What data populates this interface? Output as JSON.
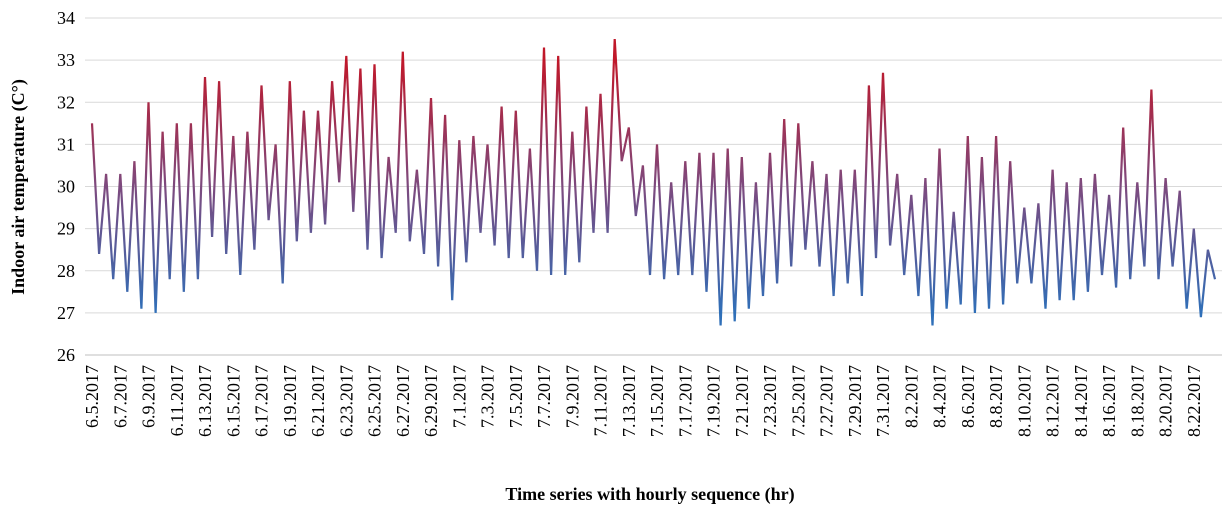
{
  "chart_data": {
    "type": "line",
    "x_label": "Time series with hourly sequence (hr)",
    "y_label": "Indoor air temperature  (C°)",
    "ylim": [
      26,
      34
    ],
    "yticks": [
      26,
      27,
      28,
      29,
      30,
      31,
      32,
      33,
      34
    ],
    "grid": true,
    "gradient_colors": [
      "#c0182a",
      "#7d4a7e",
      "#2f6fb8"
    ],
    "categories": [
      "6.5.2017",
      null,
      null,
      null,
      "6.7.2017",
      null,
      null,
      null,
      "6.9.2017",
      null,
      null,
      null,
      "6.11.2017",
      null,
      null,
      null,
      "6.13.2017",
      null,
      null,
      null,
      "6.15.2017",
      null,
      null,
      null,
      "6.17.2017",
      null,
      null,
      null,
      "6.19.2017",
      null,
      null,
      null,
      "6.21.2017",
      null,
      null,
      null,
      "6.23.2017",
      null,
      null,
      null,
      "6.25.2017",
      null,
      null,
      null,
      "6.27.2017",
      null,
      null,
      null,
      "6.29.2017",
      null,
      null,
      null,
      "7.1.2017",
      null,
      null,
      null,
      "7.3.2017",
      null,
      null,
      null,
      "7.5.2017",
      null,
      null,
      null,
      "7.7.2017",
      null,
      null,
      null,
      "7.9.2017",
      null,
      null,
      null,
      "7.11.2017",
      null,
      null,
      null,
      "7.13.2017",
      null,
      null,
      null,
      "7.15.2017",
      null,
      null,
      null,
      "7.17.2017",
      null,
      null,
      null,
      "7.19.2017",
      null,
      null,
      null,
      "7.21.2017",
      null,
      null,
      null,
      "7.23.2017",
      null,
      null,
      null,
      "7.25.2017",
      null,
      null,
      null,
      "7.27.2017",
      null,
      null,
      null,
      "7.29.2017",
      null,
      null,
      null,
      "7.31.2017",
      null,
      null,
      null,
      "8.2.2017",
      null,
      null,
      null,
      "8.4.2017",
      null,
      null,
      null,
      "8.6.2017",
      null,
      null,
      null,
      "8.8.2017",
      null,
      null,
      null,
      "8.10.2017",
      null,
      null,
      null,
      "8.12.2017",
      null,
      null,
      null,
      "8.14.2017",
      null,
      null,
      null,
      "8.16.2017",
      null,
      null,
      null,
      "8.18.2017",
      null,
      null,
      null,
      "8.20.2017",
      null,
      null,
      null,
      "8.22.2017",
      null,
      null,
      null
    ],
    "values": [
      31.5,
      28.4,
      30.3,
      27.8,
      30.3,
      27.5,
      30.6,
      27.1,
      32,
      27,
      31.3,
      27.8,
      31.5,
      27.5,
      31.5,
      27.8,
      32.6,
      28.8,
      32.5,
      28.4,
      31.2,
      27.9,
      31.3,
      28.5,
      32.4,
      29.2,
      31,
      27.7,
      32.5,
      28.7,
      31.8,
      28.9,
      31.8,
      29.1,
      32.5,
      30.1,
      33.1,
      29.4,
      32.8,
      28.5,
      32.9,
      28.3,
      30.7,
      28.9,
      33.2,
      28.7,
      30.4,
      28.4,
      32.1,
      28.1,
      31.7,
      27.3,
      31.1,
      28.2,
      31.2,
      28.9,
      31,
      28.6,
      31.9,
      28.3,
      31.8,
      28.3,
      30.9,
      28,
      33.3,
      27.9,
      33.1,
      27.9,
      31.3,
      28.2,
      31.9,
      28.9,
      32.2,
      28.9,
      33.5,
      30.6,
      31.4,
      29.3,
      30.5,
      27.9,
      31,
      27.8,
      30.1,
      27.9,
      30.6,
      27.9,
      30.8,
      27.5,
      30.8,
      26.7,
      30.9,
      26.8,
      30.7,
      27.1,
      30.1,
      27.4,
      30.8,
      27.7,
      31.6,
      28.1,
      31.5,
      28.5,
      30.6,
      28.1,
      30.3,
      27.4,
      30.4,
      27.7,
      30.4,
      27.4,
      32.4,
      28.3,
      32.7,
      28.6,
      30.3,
      27.9,
      29.8,
      27.4,
      30.2,
      26.7,
      30.9,
      27.1,
      29.4,
      27.2,
      31.2,
      27,
      30.7,
      27.1,
      31.2,
      27.2,
      30.6,
      27.7,
      29.5,
      27.7,
      29.6,
      27.1,
      30.4,
      27.3,
      30.1,
      27.3,
      30.2,
      27.5,
      30.3,
      27.9,
      29.8,
      27.6,
      31.4,
      27.8,
      30.1,
      28.1,
      32.3,
      27.8,
      30.2,
      28.1,
      29.9,
      27.1,
      29,
      26.9,
      28.5,
      27.8
    ]
  }
}
